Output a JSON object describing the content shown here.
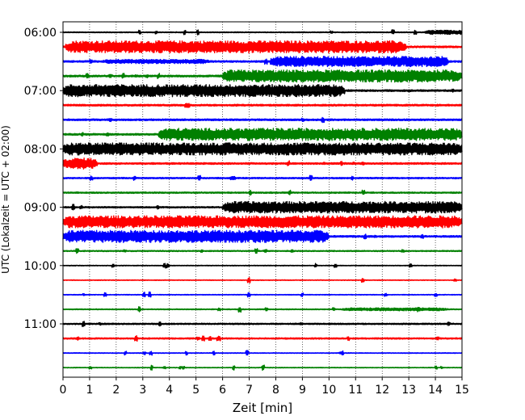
{
  "chart_data": {
    "type": "line",
    "subtype": "helicorder",
    "title": "",
    "xlabel": "Zeit  [min]",
    "ylabel": "UTC (Lokalzeit = UTC + 02:00)",
    "xlim": [
      0,
      15
    ],
    "x_ticks": [
      0,
      1,
      2,
      3,
      4,
      5,
      6,
      7,
      8,
      9,
      10,
      11,
      12,
      13,
      14,
      15
    ],
    "y_tick_labels": [
      "06:00",
      "07:00",
      "08:00",
      "09:00",
      "10:00",
      "11:00"
    ],
    "y_tick_rows": [
      0,
      4,
      8,
      12,
      16,
      20
    ],
    "x_grid": "dotted",
    "trace_colors": [
      "#000000",
      "#ff0000",
      "#0000ff",
      "#008000"
    ],
    "rows": [
      {
        "start": "06:00",
        "level": 0.08,
        "bursts": [
          [
            13.6,
            15,
            0.35
          ]
        ]
      },
      {
        "start": "06:15",
        "level": 0.15,
        "bursts": [
          [
            0.1,
            12.9,
            1.0
          ]
        ]
      },
      {
        "start": "06:30",
        "level": 0.15,
        "bursts": [
          [
            1.5,
            5.5,
            0.35
          ],
          [
            7.8,
            14.5,
            0.85
          ]
        ]
      },
      {
        "start": "06:45",
        "level": 0.15,
        "bursts": [
          [
            6.0,
            15,
            1.0
          ]
        ]
      },
      {
        "start": "07:00",
        "level": 0.15,
        "bursts": [
          [
            0,
            10.6,
            1.0
          ]
        ]
      },
      {
        "start": "07:15",
        "level": 0.15,
        "bursts": []
      },
      {
        "start": "07:30",
        "level": 0.15,
        "bursts": []
      },
      {
        "start": "07:45",
        "level": 0.15,
        "bursts": [
          [
            3.6,
            15,
            1.0
          ]
        ]
      },
      {
        "start": "08:00",
        "level": 0.15,
        "bursts": [
          [
            0,
            15,
            1.0
          ]
        ]
      },
      {
        "start": "08:15",
        "level": 0.15,
        "bursts": [
          [
            0,
            1.3,
            0.9
          ]
        ]
      },
      {
        "start": "08:30",
        "level": 0.12,
        "bursts": []
      },
      {
        "start": "08:45",
        "level": 0.12,
        "bursts": []
      },
      {
        "start": "09:00",
        "level": 0.12,
        "bursts": [
          [
            6.0,
            15,
            0.95
          ]
        ]
      },
      {
        "start": "09:15",
        "level": 0.15,
        "bursts": [
          [
            0,
            15,
            1.0
          ]
        ]
      },
      {
        "start": "09:30",
        "level": 0.15,
        "bursts": [
          [
            0,
            10.0,
            1.0
          ]
        ]
      },
      {
        "start": "09:45",
        "level": 0.1,
        "bursts": []
      },
      {
        "start": "10:00",
        "level": 0.06,
        "bursts": []
      },
      {
        "start": "10:15",
        "level": 0.06,
        "bursts": []
      },
      {
        "start": "10:30",
        "level": 0.06,
        "bursts": []
      },
      {
        "start": "10:45",
        "level": 0.08,
        "bursts": [
          [
            10.5,
            14.5,
            0.25
          ]
        ]
      },
      {
        "start": "11:00",
        "level": 0.12,
        "bursts": []
      },
      {
        "start": "11:15",
        "level": 0.12,
        "bursts": []
      },
      {
        "start": "11:30",
        "level": 0.06,
        "bursts": []
      },
      {
        "start": "11:45",
        "level": 0.06,
        "bursts": []
      }
    ]
  }
}
